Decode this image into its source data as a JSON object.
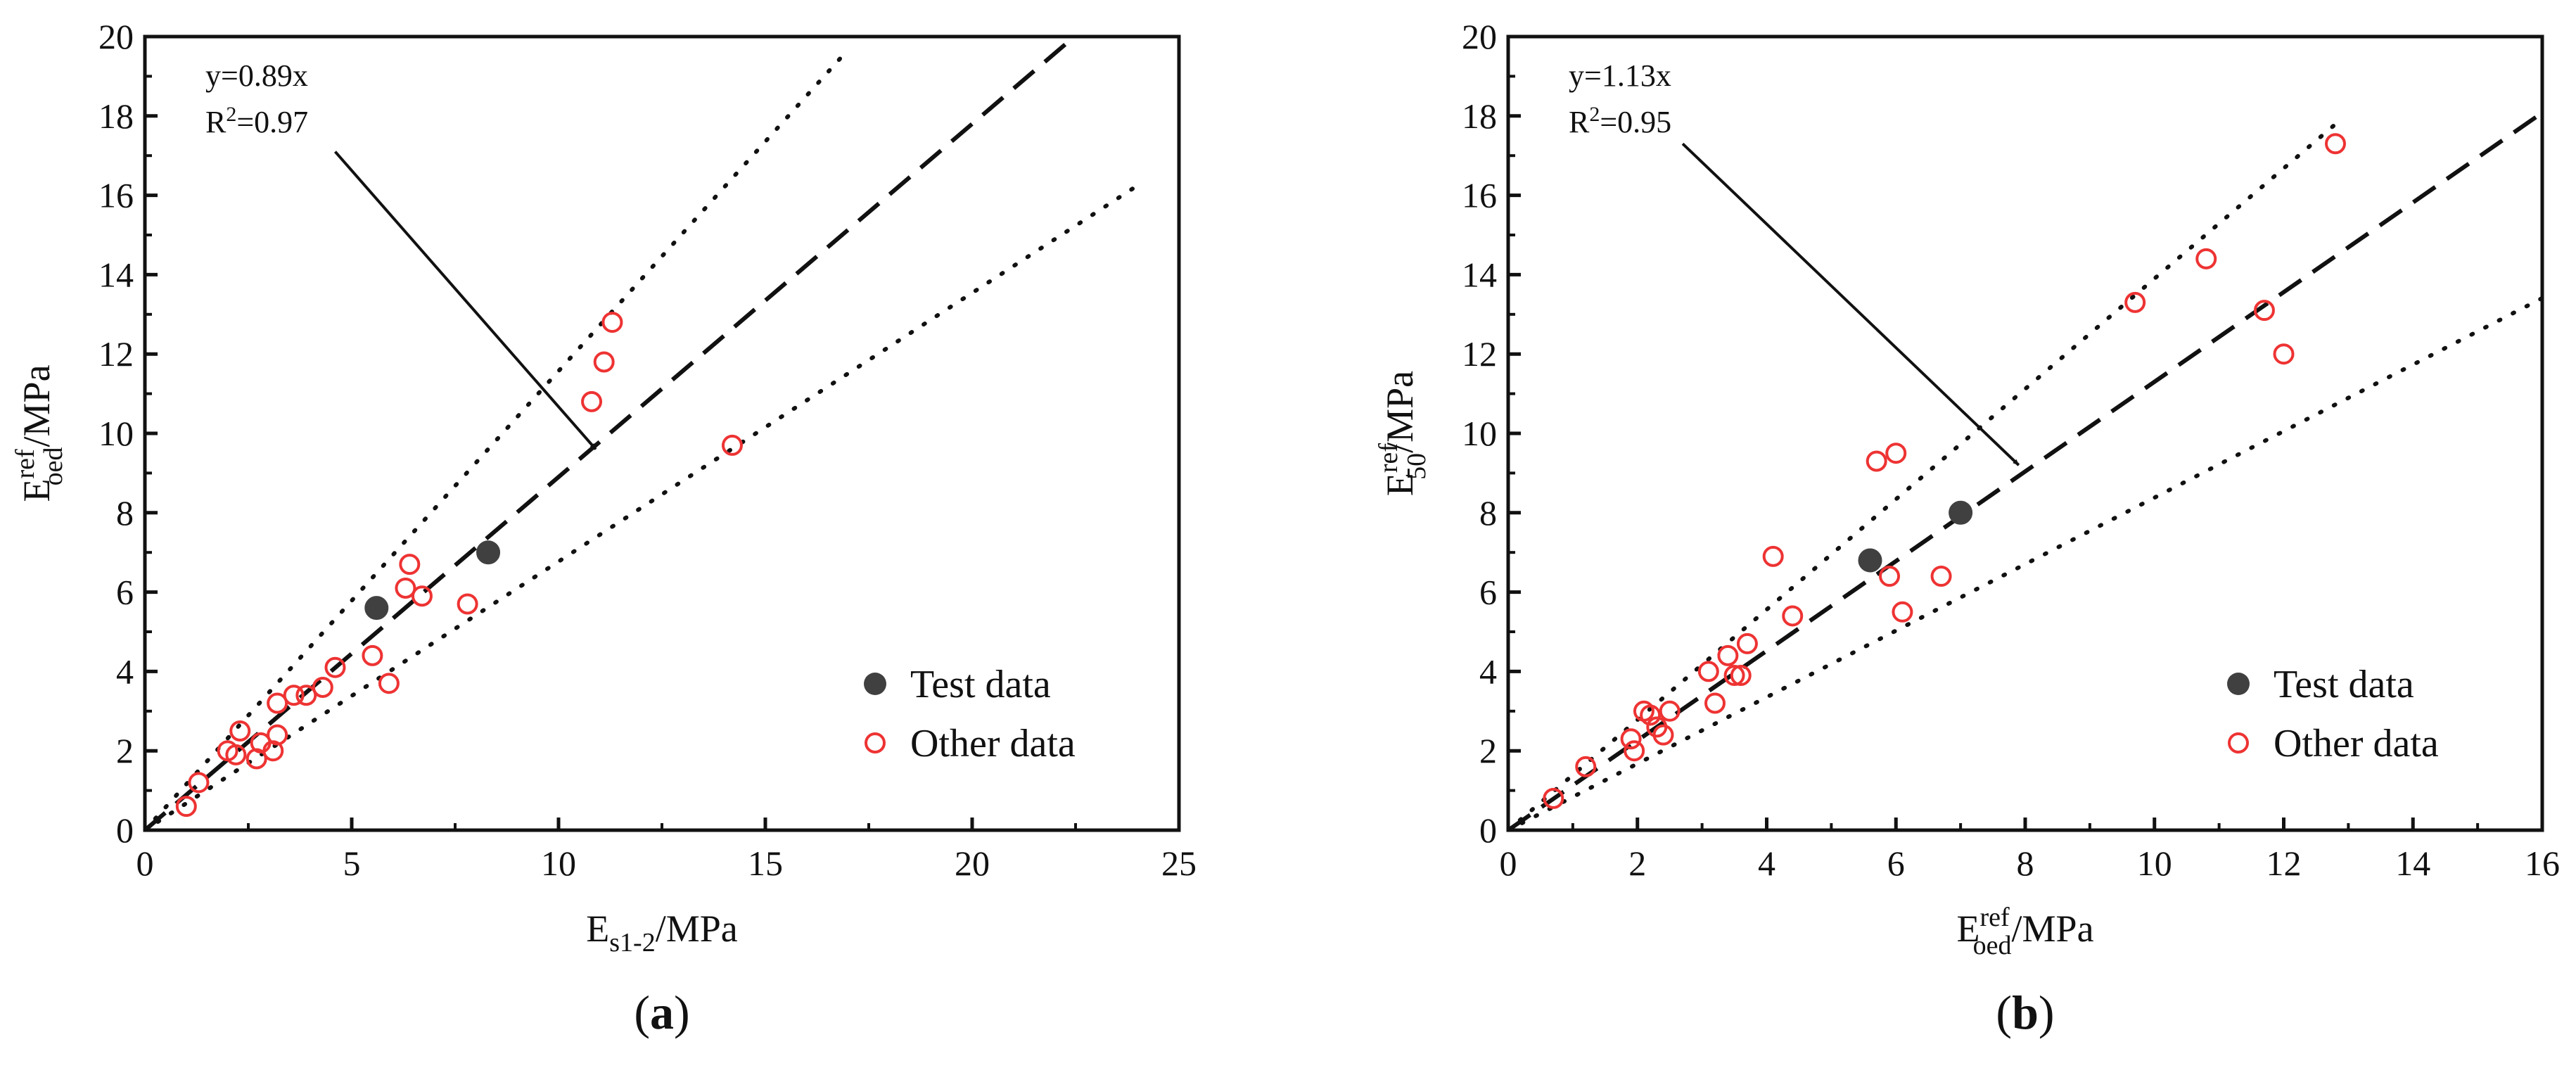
{
  "chart_data": [
    {
      "id": "a",
      "type": "scatter",
      "panel_label": "a",
      "xlabel": {
        "main": "E",
        "sub": "s1-2",
        "unit": "/MPa"
      },
      "ylabel": {
        "main": "E",
        "sup": "ref",
        "sub": "oed",
        "unit": "/MPa"
      },
      "xlim": [
        0,
        25
      ],
      "ylim": [
        0,
        20
      ],
      "xticks": [
        "0",
        "5",
        "10",
        "15",
        "20",
        "25"
      ],
      "yticks": [
        "0",
        "2",
        "4",
        "6",
        "8",
        "10",
        "12",
        "14",
        "16",
        "18",
        "20"
      ],
      "fit": {
        "slope": 0.89,
        "equation": "y=0.89x",
        "r2_prefix": "R",
        "r2_sup": "2",
        "r2_value": "=0.97",
        "x_end": 23.8
      },
      "bounds": [
        {
          "name": "upper",
          "slope": 1.157,
          "x_end": 17.0
        },
        {
          "name": "lower",
          "slope": 0.677,
          "x_end": 24.0
        }
      ],
      "arrow": {
        "from": [
          4.6,
          17.1
        ],
        "to": [
          10.9,
          9.6
        ]
      },
      "legend": {
        "position": "lower-right",
        "entries": [
          "Test data",
          "Other data"
        ]
      },
      "series": [
        {
          "name": "Test data",
          "marker": "filled-circle",
          "color": "#404040",
          "points": [
            [
              5.6,
              5.6
            ],
            [
              8.3,
              7.0
            ]
          ]
        },
        {
          "name": "Other data",
          "marker": "open-circle",
          "color": "#ee3333",
          "points": [
            [
              1.0,
              0.6
            ],
            [
              1.3,
              1.2
            ],
            [
              2.0,
              2.0
            ],
            [
              2.2,
              1.9
            ],
            [
              2.3,
              2.5
            ],
            [
              2.7,
              1.8
            ],
            [
              2.8,
              2.2
            ],
            [
              3.1,
              2.0
            ],
            [
              3.2,
              3.2
            ],
            [
              3.2,
              2.4
            ],
            [
              3.6,
              3.4
            ],
            [
              3.9,
              3.4
            ],
            [
              4.3,
              3.6
            ],
            [
              4.6,
              4.1
            ],
            [
              5.5,
              4.4
            ],
            [
              5.9,
              3.7
            ],
            [
              6.3,
              6.1
            ],
            [
              6.4,
              6.7
            ],
            [
              6.7,
              5.9
            ],
            [
              7.8,
              5.7
            ],
            [
              10.8,
              10.8
            ],
            [
              11.1,
              11.8
            ],
            [
              11.3,
              12.8
            ],
            [
              14.2,
              9.7
            ]
          ]
        }
      ]
    },
    {
      "id": "b",
      "type": "scatter",
      "panel_label": "b",
      "xlabel": {
        "main": "E",
        "sup": "ref",
        "sub": "oed",
        "unit": "/MPa"
      },
      "ylabel": {
        "main": "E",
        "sup": "ref",
        "sub": "50",
        "unit": "/MPa"
      },
      "xlim": [
        0,
        16
      ],
      "ylim": [
        0,
        20
      ],
      "xticks": [
        "0",
        "2",
        "4",
        "6",
        "8",
        "10",
        "12",
        "14",
        "16"
      ],
      "yticks": [
        "0",
        "2",
        "4",
        "6",
        "8",
        "10",
        "12",
        "14",
        "16",
        "18",
        "20"
      ],
      "fit": {
        "slope": 1.13,
        "equation": "y=1.13x",
        "r2_prefix": "R",
        "r2_sup": "2",
        "r2_value": "=0.95",
        "x_end": 16.0
      },
      "bounds": [
        {
          "name": "upper",
          "slope": 1.39,
          "x_end": 12.8
        },
        {
          "name": "lower",
          "slope": 0.838,
          "x_end": 16.0
        }
      ],
      "arrow": {
        "from": [
          2.7,
          17.3
        ],
        "to": [
          7.9,
          9.2
        ]
      },
      "legend": {
        "position": "lower-right",
        "entries": [
          "Test data",
          "Other data"
        ]
      },
      "series": [
        {
          "name": "Test data",
          "marker": "filled-circle",
          "color": "#404040",
          "points": [
            [
              5.6,
              6.8
            ],
            [
              7.0,
              8.0
            ]
          ]
        },
        {
          "name": "Other data",
          "marker": "open-circle",
          "color": "#ee3333",
          "points": [
            [
              0.7,
              0.8
            ],
            [
              1.2,
              1.6
            ],
            [
              1.9,
              2.3
            ],
            [
              1.95,
              2.0
            ],
            [
              2.1,
              3.0
            ],
            [
              2.2,
              2.9
            ],
            [
              2.3,
              2.6
            ],
            [
              2.4,
              2.4
            ],
            [
              2.5,
              3.0
            ],
            [
              3.1,
              4.0
            ],
            [
              3.2,
              3.2
            ],
            [
              3.4,
              4.4
            ],
            [
              3.5,
              3.9
            ],
            [
              3.6,
              3.9
            ],
            [
              3.7,
              4.7
            ],
            [
              4.1,
              6.9
            ],
            [
              4.4,
              5.4
            ],
            [
              5.7,
              9.3
            ],
            [
              5.9,
              6.4
            ],
            [
              6.0,
              9.5
            ],
            [
              6.1,
              5.5
            ],
            [
              6.7,
              6.4
            ],
            [
              9.7,
              13.3
            ],
            [
              10.8,
              14.4
            ],
            [
              11.7,
              13.1
            ],
            [
              12.0,
              12.0
            ],
            [
              12.8,
              17.3
            ]
          ]
        }
      ]
    }
  ]
}
